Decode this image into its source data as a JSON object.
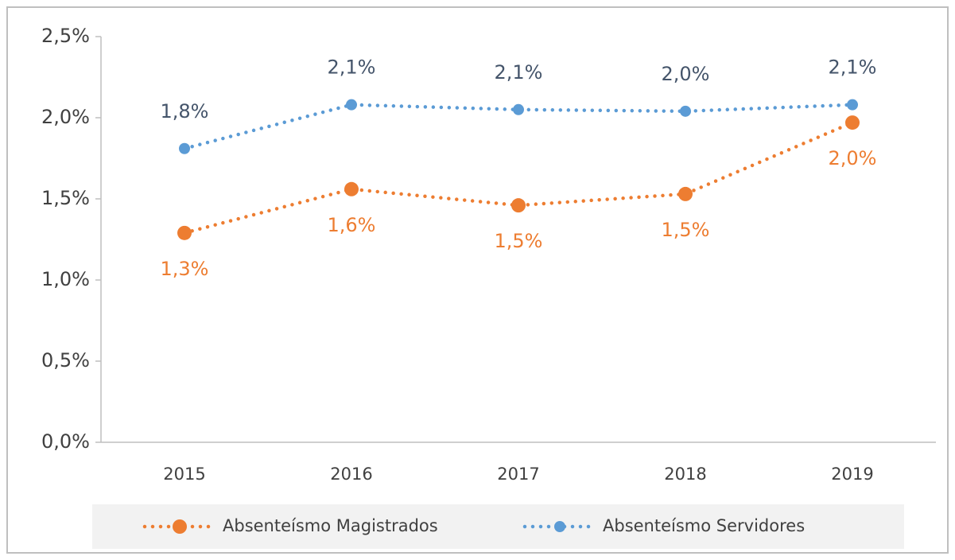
{
  "chart_data": {
    "type": "line",
    "categories": [
      "2015",
      "2016",
      "2017",
      "2018",
      "2019"
    ],
    "series": [
      {
        "name": "Absenteísmo Magistrados",
        "color": "#ed7d31",
        "label_color": "#ed7d31",
        "label_position": "below",
        "values": [
          1.29,
          1.56,
          1.46,
          1.53,
          1.97
        ],
        "value_labels": [
          "1,3%",
          "1,6%",
          "1,5%",
          "1,5%",
          "2,0%"
        ]
      },
      {
        "name": "Absenteísmo Servidores",
        "color": "#5b9bd5",
        "label_color": "#44546a",
        "label_position": "above",
        "values": [
          1.81,
          2.08,
          2.05,
          2.04,
          2.08
        ],
        "value_labels": [
          "1,8%",
          "2,1%",
          "2,1%",
          "2,0%",
          "2,1%"
        ]
      }
    ],
    "ylim": [
      0,
      2.5
    ],
    "yticks": [
      {
        "value": 0,
        "label": "0,0%"
      },
      {
        "value": 0.5,
        "label": "0,5%"
      },
      {
        "value": 1,
        "label": "1,0%"
      },
      {
        "value": 1.5,
        "label": "1,5%"
      },
      {
        "value": 2,
        "label": "2,0%"
      },
      {
        "value": 2.5,
        "label": "2,5%"
      }
    ],
    "grid": false,
    "legend": "bottom"
  }
}
